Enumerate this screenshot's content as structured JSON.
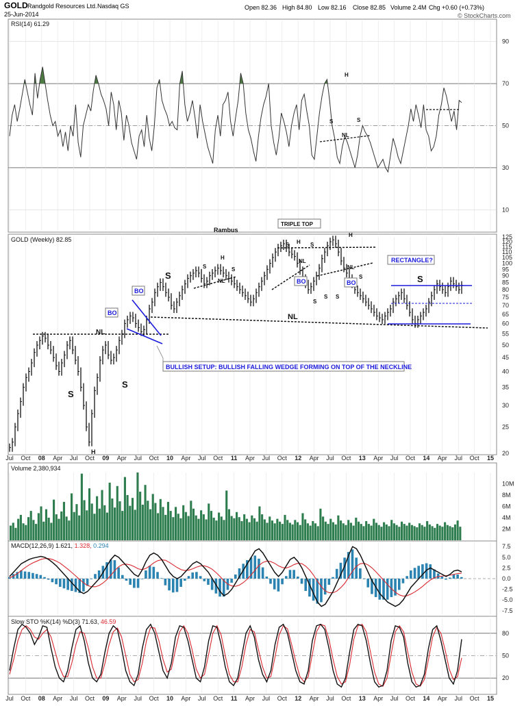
{
  "header": {
    "symbol": "GOLD",
    "company": "Randgold Resources Ltd.",
    "exchange": "Nasdaq GS",
    "date": "25-Jun-2014",
    "open": "Open 82.36",
    "high": "High 84.80",
    "low": "Low 82.16",
    "close": "Close 82.85",
    "volume": "Volume 2.4M",
    "change": "Chg +0.60 (+0.73%)",
    "source": "© StockCharts.com"
  },
  "x_axis": {
    "labels": [
      "Jul",
      "Oct",
      "08",
      "Apr",
      "Jul",
      "Oct",
      "09",
      "Apr",
      "Jul",
      "Oct",
      "10",
      "Apr",
      "Jul",
      "Oct",
      "11",
      "Apr",
      "Jul",
      "Oct",
      "12",
      "Apr",
      "Jul",
      "Oct",
      "13",
      "Apr",
      "Jul",
      "Oct",
      "14",
      "Apr",
      "Jul",
      "Oct",
      "15"
    ],
    "bold_labels": [
      "08",
      "09",
      "10",
      "11",
      "12",
      "13",
      "14",
      "15"
    ]
  },
  "colors": {
    "price_bar": "#111111",
    "volume_bar": "#2e7d4f",
    "rsi_fill": "#4e7a44",
    "macd_hist": "#2a83b0",
    "signal_line": "#d9272e",
    "annotation": "#1a1adc",
    "grid": "#bbbbbb"
  },
  "chart_data": [
    {
      "type": "line",
      "panel": "rsi",
      "legend": "RSI(14) 61.29",
      "ylim": [
        0,
        100
      ],
      "ticks": [
        10,
        30,
        50,
        70,
        90
      ],
      "values": [
        45,
        55,
        60,
        52,
        58,
        65,
        72,
        66,
        60,
        55,
        75,
        63,
        72,
        78,
        70,
        62,
        55,
        50,
        52,
        45,
        48,
        40,
        47,
        38,
        50,
        45,
        60,
        42,
        35,
        50,
        55,
        60,
        57,
        67,
        74,
        70,
        65,
        62,
        58,
        50,
        66,
        60,
        48,
        62,
        56,
        43,
        55,
        50,
        42,
        38,
        34,
        45,
        48,
        40,
        55,
        44,
        38,
        50,
        68,
        72,
        62,
        58,
        55,
        50,
        52,
        49,
        48,
        70,
        76,
        60,
        52,
        56,
        62,
        54,
        44,
        60,
        52,
        46,
        40,
        36,
        32,
        48,
        55,
        45,
        60,
        62,
        66,
        52,
        45,
        54,
        62,
        75,
        70,
        56,
        48,
        44,
        38,
        33,
        45,
        54,
        60,
        64,
        70,
        50,
        42,
        36,
        44,
        56,
        52,
        47,
        40,
        50,
        56,
        60,
        48,
        62,
        65,
        57,
        50,
        36,
        34,
        45,
        56,
        64,
        70,
        72,
        62,
        50,
        44,
        35,
        32,
        40,
        45,
        42,
        38,
        34,
        30,
        36,
        45,
        50,
        47,
        45,
        42,
        38,
        34,
        30,
        32,
        34,
        30,
        28,
        36,
        44,
        40,
        35,
        32,
        38,
        44,
        50,
        58,
        52,
        60,
        55,
        49,
        60,
        48,
        45,
        38,
        40,
        45,
        55,
        60,
        68,
        64,
        58,
        52,
        57,
        48,
        62,
        61
      ]
    },
    {
      "type": "line",
      "panel": "price",
      "legend": "GOLD (Weekly) 82.85",
      "ylim": [
        20,
        125
      ],
      "ticks": [
        20,
        25,
        30,
        35,
        40,
        45,
        50,
        55,
        60,
        65,
        70,
        75,
        80,
        85,
        90,
        95,
        100,
        105,
        110,
        115,
        120,
        125
      ],
      "values": [
        21,
        22,
        25,
        28,
        31,
        35,
        38,
        40,
        43,
        47,
        50,
        52,
        54,
        53,
        50,
        48,
        45,
        42,
        40,
        43,
        46,
        50,
        52,
        48,
        44,
        40,
        35,
        30,
        25,
        22,
        28,
        34,
        38,
        44,
        48,
        50,
        46,
        44,
        45,
        48,
        52,
        55,
        60,
        62,
        64,
        63,
        60,
        58,
        56,
        57,
        62,
        68,
        72,
        78,
        82,
        85,
        82,
        78,
        75,
        70,
        68,
        72,
        76,
        80,
        84,
        88,
        90,
        92,
        94,
        92,
        88,
        84,
        86,
        90,
        92,
        94,
        96,
        94,
        92,
        90,
        88,
        86,
        84,
        82,
        80,
        78,
        76,
        74,
        72,
        74,
        78,
        82,
        86,
        90,
        95,
        100,
        105,
        110,
        114,
        116,
        118,
        114,
        110,
        108,
        106,
        100,
        94,
        88,
        84,
        80,
        82,
        86,
        90,
        96,
        104,
        110,
        116,
        120,
        122,
        118,
        110,
        102,
        96,
        92,
        88,
        84,
        80,
        78,
        76,
        74,
        72,
        70,
        68,
        66,
        64,
        63,
        62,
        64,
        66,
        68,
        72,
        74,
        76,
        78,
        74,
        70,
        66,
        62,
        60,
        62,
        64,
        66,
        68,
        72,
        76,
        80,
        84,
        82,
        80,
        78,
        82,
        86,
        84,
        82,
        80,
        83
      ]
    },
    {
      "type": "bar",
      "panel": "volume",
      "legend": "Volume 2,380,934",
      "ylim": [
        0,
        12
      ],
      "ticks": [
        "2M",
        "4M",
        "6M",
        "8M",
        "10M"
      ],
      "values": [
        2.6,
        3.1,
        2.2,
        3.8,
        4.5,
        3.0,
        2.7,
        4.1,
        5.2,
        3.6,
        2.9,
        4.8,
        6.0,
        3.3,
        5.5,
        4.0,
        3.1,
        7.2,
        4.6,
        3.8,
        5.1,
        6.8,
        4.2,
        3.5,
        8.3,
        5.0,
        6.4,
        4.4,
        11.8,
        7.1,
        5.3,
        9.2,
        6.5,
        4.7,
        7.8,
        5.6,
        8.9,
        6.2,
        4.9,
        10.2,
        7.4,
        5.8,
        9.6,
        6.9,
        5.2,
        11.2,
        8.0,
        6.1,
        7.5,
        5.4,
        12.0,
        8.6,
        6.3,
        9.8,
        7.0,
        5.5,
        8.2,
        6.6,
        4.8,
        7.3,
        5.9,
        4.5,
        6.8,
        5.2,
        4.1,
        5.9,
        4.7,
        3.9,
        6.2,
        5.0,
        4.3,
        7.0,
        5.6,
        4.4,
        3.8,
        5.3,
        4.6,
        3.7,
        6.5,
        5.2,
        4.0,
        3.5,
        4.9,
        4.2,
        3.6,
        8.8,
        5.5,
        4.3,
        3.9,
        5.0,
        4.1,
        3.4,
        4.6,
        3.8,
        3.2,
        4.4,
        3.9,
        3.3,
        6.0,
        4.6,
        3.7,
        3.1,
        4.2,
        3.5,
        3.0,
        3.8,
        3.3,
        2.9,
        4.5,
        3.6,
        3.1,
        2.8,
        3.6,
        3.2,
        2.7,
        4.8,
        3.7,
        3.0,
        2.6,
        3.4,
        3.0,
        2.5,
        5.6,
        4.2,
        3.3,
        2.9,
        3.8,
        3.2,
        2.8,
        4.4,
        3.5,
        3.0,
        2.7,
        3.6,
        3.1,
        2.6,
        4.0,
        3.3,
        2.9,
        2.5,
        3.4,
        2.9,
        2.6,
        3.8,
        3.1,
        2.7,
        2.4,
        3.2,
        2.8,
        2.5,
        3.6,
        3.0,
        2.7,
        2.4,
        3.3,
        2.9,
        2.6,
        3.1,
        2.7,
        2.5,
        2.3,
        3.0,
        2.7,
        2.4,
        3.4,
        2.8,
        2.5,
        2.2,
        2.9,
        2.6,
        2.4,
        3.2,
        2.7,
        2.5,
        2.3,
        2.8,
        3.5,
        2.4
      ]
    },
    {
      "type": "line",
      "panel": "macd",
      "legend_main": "MACD(12,26,9) 1.621,",
      "legend_signal": "1.328,",
      "legend_hist": "0.294",
      "ylim": [
        -8.5,
        8.5
      ],
      "ticks": [
        -7.5,
        -5.0,
        -2.5,
        0.0,
        2.5,
        5.0,
        7.5
      ],
      "macd": [
        0.5,
        1.5,
        2.5,
        3.5,
        4.0,
        4.5,
        4.8,
        5.0,
        5.2,
        5.0,
        4.5,
        3.8,
        3.0,
        2.0,
        1.0,
        0.0,
        -1.0,
        -2.0,
        -3.0,
        -3.5,
        -3.0,
        -2.0,
        -1.0,
        0.0,
        1.5,
        3.0,
        4.5,
        5.5,
        5.0,
        4.0,
        3.0,
        2.0,
        1.0,
        0.5,
        2.0,
        4.0,
        5.5,
        6.0,
        5.5,
        4.5,
        3.0,
        1.5,
        0.5,
        0.0,
        0.5,
        1.5,
        2.5,
        3.5,
        4.0,
        3.5,
        2.5,
        1.5,
        0.0,
        -1.5,
        -3.0,
        -4.0,
        -3.5,
        -2.5,
        -1.0,
        0.5,
        2.0,
        3.5,
        5.0,
        6.5,
        7.0,
        6.0,
        4.5,
        3.0,
        1.5,
        0.5,
        1.5,
        3.0,
        4.5,
        5.0,
        4.0,
        2.5,
        0.5,
        -1.5,
        -3.5,
        -5.5,
        -6.5,
        -6.0,
        -4.5,
        -3.0,
        -1.0,
        1.0,
        3.0,
        5.5,
        7.5,
        7.0,
        5.5,
        3.5,
        1.5,
        -0.5,
        -2.0,
        -3.5,
        -4.5,
        -5.5,
        -6.0,
        -6.5,
        -6.0,
        -5.0,
        -3.5,
        -2.0,
        -1.0,
        0.0,
        1.0,
        2.0,
        2.5,
        2.0,
        1.5,
        1.0,
        0.5,
        1.0,
        1.8,
        2.0,
        1.6
      ],
      "signal": [
        0.2,
        0.6,
        1.2,
        1.9,
        2.6,
        3.2,
        3.7,
        4.1,
        4.5,
        4.7,
        4.7,
        4.5,
        4.1,
        3.6,
        2.9,
        2.2,
        1.4,
        0.6,
        -0.2,
        -1.0,
        -1.6,
        -1.9,
        -1.9,
        -1.6,
        -1.0,
        -0.2,
        0.8,
        1.9,
        2.8,
        3.3,
        3.4,
        3.2,
        2.8,
        2.3,
        2.1,
        2.4,
        3.0,
        3.7,
        4.2,
        4.4,
        4.3,
        3.8,
        3.2,
        2.6,
        2.1,
        1.9,
        2.0,
        2.3,
        2.7,
        3.0,
        3.0,
        2.7,
        2.2,
        1.4,
        0.5,
        -0.5,
        -1.3,
        -1.7,
        -1.8,
        -1.5,
        -0.9,
        -0.1,
        0.9,
        2.0,
        3.1,
        3.8,
        4.1,
        4.0,
        3.6,
        3.0,
        2.6,
        2.5,
        2.8,
        3.3,
        3.6,
        3.5,
        2.9,
        2.0,
        0.8,
        -0.6,
        -1.9,
        -2.9,
        -3.3,
        -3.3,
        -2.9,
        -2.1,
        -1.1,
        0.3,
        1.8,
        2.9,
        3.5,
        3.6,
        3.2,
        2.5,
        1.6,
        0.6,
        -0.4,
        -1.4,
        -2.4,
        -3.2,
        -3.8,
        -4.1,
        -4.0,
        -3.6,
        -3.1,
        -2.5,
        -1.8,
        -1.0,
        -0.3,
        0.2,
        0.5,
        0.6,
        0.7,
        0.8,
        1.0,
        1.2,
        1.3
      ]
    },
    {
      "type": "line",
      "panel": "stochastic",
      "legend_main": "Slow STO %K(14) %D(3) 71.63,",
      "legend_signal": "46.59",
      "ylim": [
        0,
        100
      ],
      "ticks": [
        20,
        50,
        80
      ],
      "k": [
        30,
        60,
        85,
        92,
        88,
        80,
        65,
        75,
        90,
        88,
        60,
        35,
        20,
        15,
        30,
        60,
        85,
        90,
        70,
        40,
        20,
        15,
        25,
        55,
        80,
        90,
        85,
        60,
        30,
        15,
        10,
        25,
        60,
        85,
        92,
        80,
        55,
        30,
        20,
        40,
        75,
        90,
        88,
        70,
        45,
        20,
        15,
        35,
        70,
        90,
        88,
        65,
        35,
        15,
        10,
        20,
        50,
        80,
        90,
        75,
        45,
        25,
        15,
        30,
        65,
        88,
        92,
        80,
        55,
        30,
        15,
        12,
        30,
        70,
        90,
        92,
        85,
        60,
        30,
        12,
        8,
        20,
        55,
        85,
        92,
        90,
        70,
        40,
        15,
        8,
        10,
        30,
        70,
        90,
        88,
        75,
        40,
        15,
        8,
        10,
        25,
        60,
        85,
        90,
        70,
        45,
        20,
        12,
        30,
        72
      ],
      "d": [
        25,
        45,
        70,
        85,
        90,
        85,
        75,
        72,
        80,
        85,
        75,
        55,
        35,
        22,
        22,
        40,
        65,
        82,
        80,
        60,
        35,
        20,
        20,
        40,
        65,
        82,
        87,
        75,
        50,
        25,
        15,
        18,
        40,
        70,
        88,
        87,
        70,
        45,
        28,
        32,
        58,
        82,
        90,
        80,
        58,
        32,
        20,
        25,
        52,
        80,
        90,
        78,
        50,
        25,
        15,
        15,
        35,
        65,
        85,
        82,
        58,
        35,
        20,
        22,
        48,
        78,
        90,
        86,
        65,
        42,
        22,
        15,
        22,
        52,
        82,
        92,
        90,
        72,
        45,
        22,
        12,
        15,
        38,
        72,
        90,
        92,
        82,
        55,
        28,
        12,
        9,
        20,
        52,
        82,
        90,
        82,
        55,
        28,
        12,
        9,
        18,
        45,
        75,
        88,
        80,
        58,
        32,
        18,
        22,
        47
      ]
    }
  ],
  "annotations": {
    "rambus": "Rambus",
    "triple_top": "TRIPLE TOP",
    "rectangle": "RECTANGLE?",
    "bullish_setup": "BULLISH SETUP: BULLISH FALLING WEDGE FORMING ON TOP OF THE NECKLINE",
    "bo": "BO",
    "nl": "NL",
    "s": "S",
    "h": "H"
  }
}
